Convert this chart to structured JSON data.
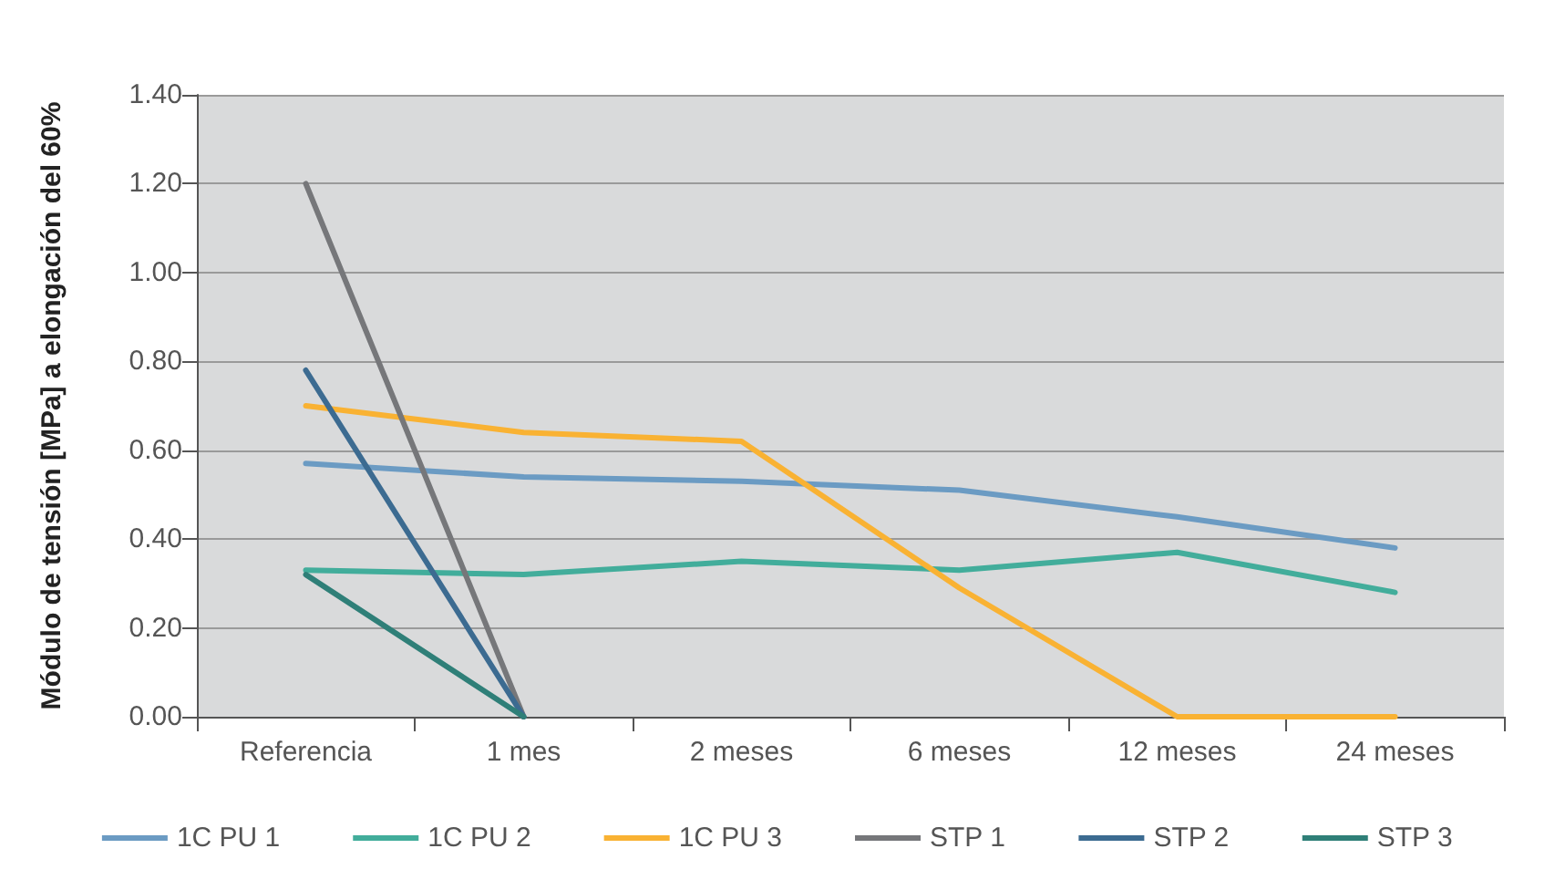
{
  "chart_data": {
    "type": "line",
    "ylabel": "Módulo de tensión [MPa] a elongación del 60%",
    "categories": [
      "Referencia",
      "1 mes",
      "2 meses",
      "6 meses",
      "12 meses",
      "24 meses"
    ],
    "series": [
      {
        "name": "1C PU 1",
        "color": "#6b9bc3",
        "values": [
          0.57,
          0.54,
          0.53,
          0.51,
          0.45,
          0.38
        ]
      },
      {
        "name": "1C PU 2",
        "color": "#42ad9b",
        "values": [
          0.33,
          0.32,
          0.35,
          0.33,
          0.37,
          0.28
        ]
      },
      {
        "name": "1C PU 3",
        "color": "#f9b233",
        "values": [
          0.7,
          0.64,
          0.62,
          0.29,
          0,
          0
        ]
      },
      {
        "name": "STP 1",
        "color": "#76777a",
        "values": [
          1.2,
          0,
          null,
          null,
          null,
          null
        ]
      },
      {
        "name": "STP 2",
        "color": "#3c6b91",
        "values": [
          0.78,
          0,
          null,
          null,
          null,
          null
        ]
      },
      {
        "name": "STP 3",
        "color": "#2f7f78",
        "values": [
          0.32,
          0,
          null,
          null,
          null,
          null
        ]
      }
    ],
    "ylim": [
      0,
      1.4
    ],
    "yticks": [
      {
        "value": 0,
        "label": "0.00"
      },
      {
        "value": 0.2,
        "label": "0.20"
      },
      {
        "value": 0.4,
        "label": "0.40"
      },
      {
        "value": 0.6,
        "label": "0.60"
      },
      {
        "value": 0.8,
        "label": "0.80"
      },
      {
        "value": 1,
        "label": "1.00"
      },
      {
        "value": 1.2,
        "label": "1.20"
      },
      {
        "value": 1.4,
        "label": "1.40"
      }
    ],
    "grid": "y",
    "legend": "bottom",
    "marker": "none",
    "line_style": "solid"
  }
}
